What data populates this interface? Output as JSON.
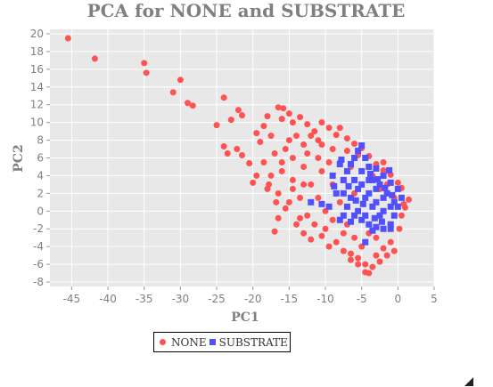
{
  "chart_data": {
    "type": "scatter",
    "title": "PCA for NONE and SUBSTRATE",
    "xlabel": "PC1",
    "ylabel": "PC2",
    "xlim": [
      -48,
      5
    ],
    "ylim": [
      -8.5,
      20.5
    ],
    "x_ticks": [
      -45,
      -40,
      -35,
      -30,
      -25,
      -20,
      -15,
      -10,
      -5,
      0,
      5
    ],
    "y_ticks": [
      -8,
      -6,
      -4,
      -2,
      0,
      2,
      4,
      6,
      8,
      10,
      12,
      14,
      16,
      18,
      20
    ],
    "grid": true,
    "legend_position": "bottom-left",
    "series": [
      {
        "name": "NONE",
        "marker": "circle",
        "color": "#ff5252",
        "points": [
          [
            -45.5,
            19.5
          ],
          [
            -41.8,
            17.2
          ],
          [
            -35.0,
            16.7
          ],
          [
            -34.7,
            15.6
          ],
          [
            -30.0,
            14.8
          ],
          [
            -31.0,
            13.4
          ],
          [
            -29.0,
            12.2
          ],
          [
            -28.3,
            11.9
          ],
          [
            -24.0,
            12.8
          ],
          [
            -22.0,
            11.4
          ],
          [
            -21.5,
            10.8
          ],
          [
            -25.0,
            9.7
          ],
          [
            -23.0,
            10.3
          ],
          [
            -24.0,
            7.3
          ],
          [
            -23.5,
            6.5
          ],
          [
            -22.2,
            7.0
          ],
          [
            -21.5,
            6.3
          ],
          [
            -20.5,
            5.4
          ],
          [
            -19.5,
            8.8
          ],
          [
            -19.0,
            7.8
          ],
          [
            -18.5,
            9.6
          ],
          [
            -18.0,
            10.7
          ],
          [
            -17.5,
            8.5
          ],
          [
            -16.5,
            11.7
          ],
          [
            -15.8,
            11.6
          ],
          [
            -16.0,
            10.4
          ],
          [
            -15.0,
            11.0
          ],
          [
            -14.5,
            10.0
          ],
          [
            -13.5,
            10.6
          ],
          [
            -12.5,
            9.8
          ],
          [
            -11.5,
            9.0
          ],
          [
            -10.5,
            10.0
          ],
          [
            -9.5,
            9.4
          ],
          [
            -8.5,
            8.6
          ],
          [
            -8.0,
            9.4
          ],
          [
            -7.0,
            8.2
          ],
          [
            -17.0,
            -2.3
          ],
          [
            -16.5,
            -0.8
          ],
          [
            -15.5,
            0.3
          ],
          [
            -14.0,
            -1.5
          ],
          [
            -13.0,
            -2.5
          ],
          [
            -12.0,
            -3.2
          ],
          [
            -10.5,
            -2.8
          ],
          [
            -9.5,
            -4.0
          ],
          [
            -8.5,
            -3.5
          ],
          [
            -7.5,
            -4.5
          ],
          [
            -6.5,
            -4.8
          ],
          [
            -5.5,
            -5.3
          ],
          [
            -4.5,
            -6.0
          ],
          [
            -3.5,
            -6.3
          ],
          [
            -2.5,
            -5.7
          ],
          [
            -1.5,
            -5.0
          ],
          [
            -0.5,
            -4.5
          ],
          [
            -4.0,
            -7.0
          ],
          [
            -4.5,
            -6.9
          ],
          [
            -5.5,
            -6.0
          ],
          [
            -6.5,
            -5.5
          ],
          [
            1.5,
            1.3
          ],
          [
            1.0,
            0.4
          ],
          [
            0.5,
            2.6
          ],
          [
            0.0,
            3.2
          ],
          [
            -1.0,
            4.1
          ],
          [
            -2.0,
            4.6
          ],
          [
            -3.0,
            5.3
          ],
          [
            -4.0,
            6.2
          ],
          [
            -5.0,
            7.1
          ],
          [
            -6.0,
            7.6
          ],
          [
            -9.0,
            7.0
          ],
          [
            -11.0,
            8.0
          ],
          [
            -13.0,
            7.5
          ],
          [
            -15.0,
            8.0
          ],
          [
            -17.0,
            6.5
          ],
          [
            -18.5,
            5.5
          ],
          [
            -19.5,
            4.0
          ],
          [
            -20.0,
            3.2
          ],
          [
            -17.8,
            3.0
          ],
          [
            -16.5,
            2.0
          ],
          [
            -16.0,
            4.5
          ],
          [
            -14.5,
            6.0
          ],
          [
            -13.0,
            5.0
          ],
          [
            -12.0,
            3.0
          ],
          [
            -11.0,
            1.5
          ],
          [
            -10.0,
            0.0
          ],
          [
            -9.0,
            -1.0
          ],
          [
            -8.0,
            1.0
          ],
          [
            -7.5,
            3.5
          ],
          [
            -6.5,
            5.0
          ],
          [
            -5.5,
            6.3
          ],
          [
            -3.5,
            4.0
          ],
          [
            -2.5,
            2.5
          ],
          [
            -1.5,
            3.0
          ],
          [
            -0.5,
            1.5
          ],
          [
            0.5,
            -0.5
          ],
          [
            0.2,
            -2.0
          ],
          [
            -1.0,
            -3.5
          ],
          [
            -2.0,
            -4.2
          ],
          [
            -3.0,
            -3.0
          ],
          [
            -4.0,
            -2.5
          ],
          [
            -6.0,
            -3.0
          ],
          [
            -7.0,
            -1.5
          ],
          [
            -8.5,
            2.0
          ],
          [
            -10.5,
            4.5
          ],
          [
            -12.5,
            6.5
          ],
          [
            -14.0,
            8.5
          ],
          [
            -15.5,
            7.0
          ],
          [
            -16.0,
            5.5
          ],
          [
            -14.5,
            3.5
          ],
          [
            -13.5,
            1.5
          ],
          [
            -12.5,
            -0.5
          ],
          [
            -11.5,
            -1.5
          ],
          [
            -10.0,
            -2.0
          ],
          [
            -9.0,
            3.0
          ],
          [
            -8.0,
            5.5
          ],
          [
            -7.0,
            6.8
          ],
          [
            -11.0,
            6.0
          ],
          [
            -13.0,
            3.0
          ],
          [
            -15.0,
            1.0
          ],
          [
            -17.5,
            4.0
          ],
          [
            -18.0,
            2.5
          ],
          [
            -3.0,
            -5.0
          ],
          [
            -1.0,
            -1.5
          ],
          [
            0.8,
            0.8
          ],
          [
            -2.0,
            5.5
          ],
          [
            -6.0,
            2.0
          ],
          [
            -9.5,
            5.5
          ],
          [
            -10.5,
            7.5
          ],
          [
            -12.0,
            8.5
          ],
          [
            -5.0,
            -4.0
          ],
          [
            -7.5,
            -2.5
          ],
          [
            -13.5,
            -0.8
          ],
          [
            -14.5,
            2.5
          ],
          [
            -16.8,
            1.0
          ]
        ]
      },
      {
        "name": "SUBSTRATE",
        "marker": "square",
        "color": "#5050ff",
        "points": [
          [
            -5.0,
            7.4
          ],
          [
            -5.5,
            6.8
          ],
          [
            -4.5,
            6.0
          ],
          [
            -6.0,
            6.0
          ],
          [
            -4.0,
            5.0
          ],
          [
            -3.0,
            4.8
          ],
          [
            -2.0,
            4.0
          ],
          [
            -1.0,
            3.2
          ],
          [
            0.0,
            2.5
          ],
          [
            0.5,
            1.5
          ],
          [
            0.0,
            0.5
          ],
          [
            -0.5,
            -0.5
          ],
          [
            -1.0,
            -1.5
          ],
          [
            -2.0,
            -2.0
          ],
          [
            -3.0,
            -1.8
          ],
          [
            -4.0,
            -1.5
          ],
          [
            -5.0,
            -1.0
          ],
          [
            -6.0,
            -0.5
          ],
          [
            -7.0,
            0.5
          ],
          [
            -7.5,
            2.0
          ],
          [
            -7.5,
            3.5
          ],
          [
            -7.0,
            4.5
          ],
          [
            -6.5,
            5.3
          ],
          [
            -5.0,
            4.5
          ],
          [
            -4.0,
            3.5
          ],
          [
            -3.0,
            2.5
          ],
          [
            -2.0,
            1.5
          ],
          [
            -1.0,
            0.5
          ],
          [
            -2.5,
            -0.5
          ],
          [
            -3.5,
            0.5
          ],
          [
            -4.5,
            1.5
          ],
          [
            -5.5,
            2.5
          ],
          [
            -6.0,
            3.5
          ],
          [
            -5.0,
            3.0
          ],
          [
            -4.0,
            2.0
          ],
          [
            -3.0,
            1.0
          ],
          [
            -2.0,
            0.0
          ],
          [
            -1.5,
            2.0
          ],
          [
            -2.5,
            3.0
          ],
          [
            -3.5,
            3.5
          ],
          [
            -4.5,
            -0.5
          ],
          [
            -5.5,
            0.0
          ],
          [
            -6.5,
            1.5
          ],
          [
            -8.0,
            5.3
          ],
          [
            -9.0,
            4.0
          ],
          [
            -8.5,
            2.0
          ],
          [
            -7.5,
            -0.5
          ],
          [
            -6.5,
            -1.2
          ],
          [
            -12.0,
            1.0
          ],
          [
            -10.5,
            0.8
          ],
          [
            -9.5,
            0.5
          ],
          [
            -8.0,
            -1.0
          ],
          [
            -4.5,
            -3.5
          ],
          [
            -3.5,
            -2.2
          ],
          [
            -1.0,
            -2.0
          ],
          [
            -0.5,
            1.0
          ],
          [
            -3.8,
            4.2
          ],
          [
            -2.8,
            3.6
          ],
          [
            -1.8,
            2.6
          ],
          [
            -0.8,
            1.8
          ],
          [
            -4.8,
            0.8
          ],
          [
            -3.2,
            -0.8
          ],
          [
            -5.8,
            1.2
          ],
          [
            -2.2,
            -1.2
          ],
          [
            -6.8,
            2.8
          ],
          [
            -1.2,
            4.6
          ],
          [
            -7.8,
            5.8
          ],
          [
            -8.8,
            2.8
          ]
        ]
      }
    ]
  }
}
